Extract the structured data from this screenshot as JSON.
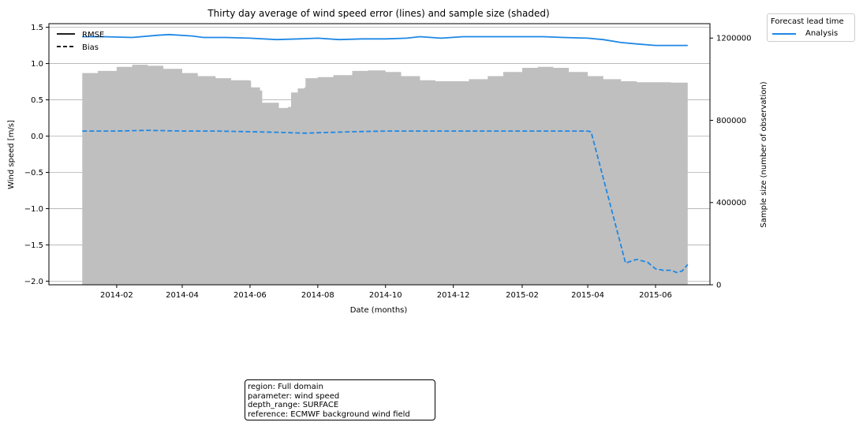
{
  "chart_data": {
    "type": "line",
    "title": "Thirty day average of wind speed error (lines) and sample size (shaded)",
    "xlabel": "Date (months)",
    "ylabel": "Wind speed [m/s]",
    "y2label": "Sample size (number of observation)",
    "xlim": [
      "2013-12-02",
      "2015-07-20"
    ],
    "ylim": [
      -2.05,
      1.55
    ],
    "y2lim": [
      0,
      1270000
    ],
    "x_ticks": [
      "2014-02",
      "2014-04",
      "2014-06",
      "2014-08",
      "2014-10",
      "2014-12",
      "2015-02",
      "2015-04",
      "2015-06"
    ],
    "x_tick_dates": [
      "2014-02-01",
      "2014-04-01",
      "2014-06-01",
      "2014-08-01",
      "2014-10-01",
      "2014-12-01",
      "2015-02-01",
      "2015-04-01",
      "2015-06-01"
    ],
    "y_ticks": [
      "1.5",
      "1.0",
      "0.5",
      "0.0",
      "−0.5",
      "−1.0",
      "−1.5",
      "−2.0"
    ],
    "y_tick_values": [
      1.5,
      1.0,
      0.5,
      0.0,
      -0.5,
      -1.0,
      -1.5,
      -2.0
    ],
    "y2_ticks": [
      "1200000",
      "800000",
      "400000",
      "0"
    ],
    "y2_tick_values": [
      1200000,
      800000,
      400000,
      0
    ],
    "grid": "horizontal",
    "style_legend": {
      "items": [
        {
          "label": "RMSE",
          "linestyle": "solid"
        },
        {
          "label": "Bias",
          "linestyle": "dashed"
        }
      ],
      "placement": "top-left"
    },
    "series_legend": {
      "title": "Forecast lead time",
      "items": [
        {
          "label": "Analysis",
          "color": "#1e88e5"
        }
      ],
      "placement": "outside-top-right"
    },
    "series": [
      {
        "name": "Analysis",
        "metric": "RMSE",
        "color": "#1e88e5",
        "linestyle": "solid",
        "points": [
          [
            "2014-01-01",
            1.37
          ],
          [
            "2014-01-20",
            1.37
          ],
          [
            "2014-02-15",
            1.36
          ],
          [
            "2014-03-10",
            1.39
          ],
          [
            "2014-03-20",
            1.4
          ],
          [
            "2014-04-10",
            1.38
          ],
          [
            "2014-04-20",
            1.36
          ],
          [
            "2014-05-10",
            1.36
          ],
          [
            "2014-06-01",
            1.35
          ],
          [
            "2014-06-25",
            1.33
          ],
          [
            "2014-07-15",
            1.34
          ],
          [
            "2014-08-01",
            1.35
          ],
          [
            "2014-08-20",
            1.33
          ],
          [
            "2014-09-10",
            1.34
          ],
          [
            "2014-10-01",
            1.34
          ],
          [
            "2014-10-20",
            1.35
          ],
          [
            "2014-11-01",
            1.37
          ],
          [
            "2014-11-20",
            1.35
          ],
          [
            "2014-12-10",
            1.37
          ],
          [
            "2015-01-01",
            1.37
          ],
          [
            "2015-01-20",
            1.37
          ],
          [
            "2015-02-20",
            1.37
          ],
          [
            "2015-03-10",
            1.36
          ],
          [
            "2015-04-01",
            1.35
          ],
          [
            "2015-04-15",
            1.33
          ],
          [
            "2015-05-01",
            1.29
          ],
          [
            "2015-05-15",
            1.27
          ],
          [
            "2015-06-01",
            1.25
          ],
          [
            "2015-06-15",
            1.25
          ],
          [
            "2015-06-30",
            1.25
          ]
        ]
      },
      {
        "name": "Analysis",
        "metric": "Bias",
        "color": "#1e88e5",
        "linestyle": "dashed",
        "points": [
          [
            "2014-01-01",
            0.07
          ],
          [
            "2014-02-01",
            0.07
          ],
          [
            "2014-03-01",
            0.08
          ],
          [
            "2014-04-01",
            0.07
          ],
          [
            "2014-05-01",
            0.07
          ],
          [
            "2014-06-01",
            0.06
          ],
          [
            "2014-07-01",
            0.05
          ],
          [
            "2014-07-20",
            0.04
          ],
          [
            "2014-08-10",
            0.05
          ],
          [
            "2014-09-01",
            0.06
          ],
          [
            "2014-10-01",
            0.07
          ],
          [
            "2014-11-01",
            0.07
          ],
          [
            "2014-12-01",
            0.07
          ],
          [
            "2015-01-01",
            0.07
          ],
          [
            "2015-02-01",
            0.07
          ],
          [
            "2015-03-01",
            0.07
          ],
          [
            "2015-04-01",
            0.07
          ],
          [
            "2015-04-04",
            0.06
          ],
          [
            "2015-05-05",
            -1.75
          ],
          [
            "2015-05-15",
            -1.7
          ],
          [
            "2015-05-25",
            -1.74
          ],
          [
            "2015-06-01",
            -1.83
          ],
          [
            "2015-06-08",
            -1.85
          ],
          [
            "2015-06-15",
            -1.85
          ],
          [
            "2015-06-20",
            -1.88
          ],
          [
            "2015-06-25",
            -1.86
          ],
          [
            "2015-06-30",
            -1.77
          ]
        ]
      }
    ],
    "sample_size": {
      "color": "#bfbfbf",
      "points": [
        [
          "2014-01-01",
          1030000
        ],
        [
          "2014-01-15",
          1040000
        ],
        [
          "2014-02-01",
          1060000
        ],
        [
          "2014-02-15",
          1070000
        ],
        [
          "2014-03-01",
          1065000
        ],
        [
          "2014-03-15",
          1050000
        ],
        [
          "2014-04-01",
          1030000
        ],
        [
          "2014-04-15",
          1015000
        ],
        [
          "2014-05-01",
          1005000
        ],
        [
          "2014-05-15",
          995000
        ],
        [
          "2014-06-01",
          992000
        ],
        [
          "2014-06-02",
          960000
        ],
        [
          "2014-06-10",
          945000
        ],
        [
          "2014-06-12",
          885000
        ],
        [
          "2014-06-26",
          885000
        ],
        [
          "2014-06-27",
          860000
        ],
        [
          "2014-07-05",
          865000
        ],
        [
          "2014-07-08",
          935000
        ],
        [
          "2014-07-14",
          955000
        ],
        [
          "2014-07-20",
          960000
        ],
        [
          "2014-07-21",
          1005000
        ],
        [
          "2014-08-01",
          1010000
        ],
        [
          "2014-08-15",
          1020000
        ],
        [
          "2014-09-01",
          1040000
        ],
        [
          "2014-09-15",
          1043000
        ],
        [
          "2014-10-01",
          1035000
        ],
        [
          "2014-10-15",
          1015000
        ],
        [
          "2014-11-01",
          995000
        ],
        [
          "2014-11-15",
          990000
        ],
        [
          "2014-12-01",
          990000
        ],
        [
          "2014-12-15",
          1000000
        ],
        [
          "2015-01-01",
          1015000
        ],
        [
          "2015-01-15",
          1035000
        ],
        [
          "2015-02-01",
          1055000
        ],
        [
          "2015-02-15",
          1060000
        ],
        [
          "2015-03-01",
          1055000
        ],
        [
          "2015-03-15",
          1035000
        ],
        [
          "2015-04-01",
          1015000
        ],
        [
          "2015-04-15",
          1000000
        ],
        [
          "2015-05-01",
          990000
        ],
        [
          "2015-05-15",
          985000
        ],
        [
          "2015-06-01",
          985000
        ],
        [
          "2015-06-15",
          983000
        ],
        [
          "2015-06-30",
          980000
        ]
      ]
    }
  },
  "info_box": {
    "lines": [
      "region: Full domain",
      "parameter: wind speed",
      "depth_range: SURFACE",
      "reference: ECMWF background wind field"
    ]
  }
}
